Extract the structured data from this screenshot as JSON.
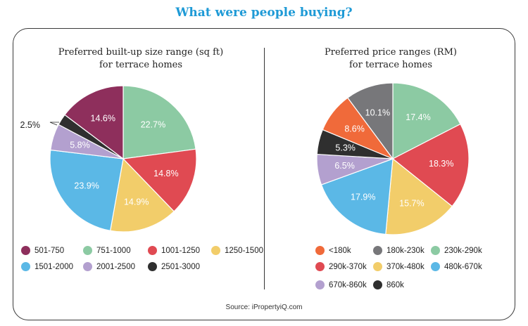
{
  "title": "What were people buying?",
  "source": "Source: iPropertyiQ.com",
  "chart_data": [
    {
      "type": "pie",
      "title_line1": "Preferred built-up size range (sq ft)",
      "title_line2": "for terrace homes",
      "start_at": "top, clockwise",
      "slices": [
        {
          "label": "751-1000",
          "value": 22.7,
          "text": "22.7%",
          "color": "#8ccaa3"
        },
        {
          "label": "1001-1250",
          "value": 14.8,
          "text": "14.8%",
          "color": "#e04a52"
        },
        {
          "label": "1250-1500",
          "value": 14.9,
          "text": "14.9%",
          "color": "#f2cd6a"
        },
        {
          "label": "1501-2000",
          "value": 23.9,
          "text": "23.9%",
          "color": "#5bb8e6"
        },
        {
          "label": "2001-2500",
          "value": 5.8,
          "text": "5.8%",
          "color": "#b3a0cf"
        },
        {
          "label": "2501-3000",
          "value": 2.5,
          "text": "2.5%",
          "color": "#2f2f2f"
        },
        {
          "label": "501-750",
          "value": 14.6,
          "text": "14.6%",
          "color": "#8e2f5c"
        }
      ],
      "legend": [
        "501-750",
        "751-1000",
        "1001-1250",
        "1250-1500",
        "1501-2000",
        "2001-2500",
        "2501-3000"
      ]
    },
    {
      "type": "pie",
      "title_line1": "Preferred price ranges (RM)",
      "title_line2": "for terrace homes",
      "start_at": "top, clockwise",
      "slices": [
        {
          "label": "230k-290k",
          "value": 17.4,
          "text": "17.4%",
          "color": "#8ccaa3"
        },
        {
          "label": "290k-370k",
          "value": 18.3,
          "text": "18.3%",
          "color": "#e04a52"
        },
        {
          "label": "370k-480k",
          "value": 15.7,
          "text": "15.7%",
          "color": "#f2cd6a"
        },
        {
          "label": "480k-670k",
          "value": 17.9,
          "text": "17.9%",
          "color": "#5bb8e6"
        },
        {
          "label": "670k-860k",
          "value": 6.5,
          "text": "6.5%",
          "color": "#b3a0cf"
        },
        {
          "label": "860k",
          "value": 5.3,
          "text": "5.3%",
          "color": "#2f2f2f"
        },
        {
          "label": "<180k",
          "value": 8.6,
          "text": "8.6%",
          "color": "#f06a3a"
        },
        {
          "label": "180k-230k",
          "value": 10.1,
          "text": "10.1%",
          "color": "#77777a"
        }
      ],
      "legend": [
        "<180k",
        "180k-230k",
        "230k-290k",
        "290k-370k",
        "370k-480k",
        "480k-670k",
        "670k-860k",
        "860k"
      ]
    }
  ]
}
